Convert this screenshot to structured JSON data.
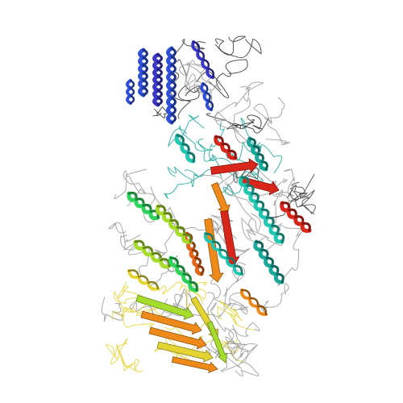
{
  "figure": {
    "subject": "protein-ribbon-structure",
    "coloring": "rainbow",
    "background_color": "#ffffff",
    "rainbow_colors": {
      "blue": "#2f4fd8",
      "indigo": "#3a37c8",
      "cyan": "#22c7b2",
      "teal": "#1aa899",
      "green": "#2ed35a",
      "lime": "#a6dd2c",
      "yellow": "#e4d431",
      "orange": "#ee8a1a",
      "dark_orange": "#e2661a",
      "red": "#d8261b",
      "loop_gray": "#9a9a9a"
    }
  }
}
